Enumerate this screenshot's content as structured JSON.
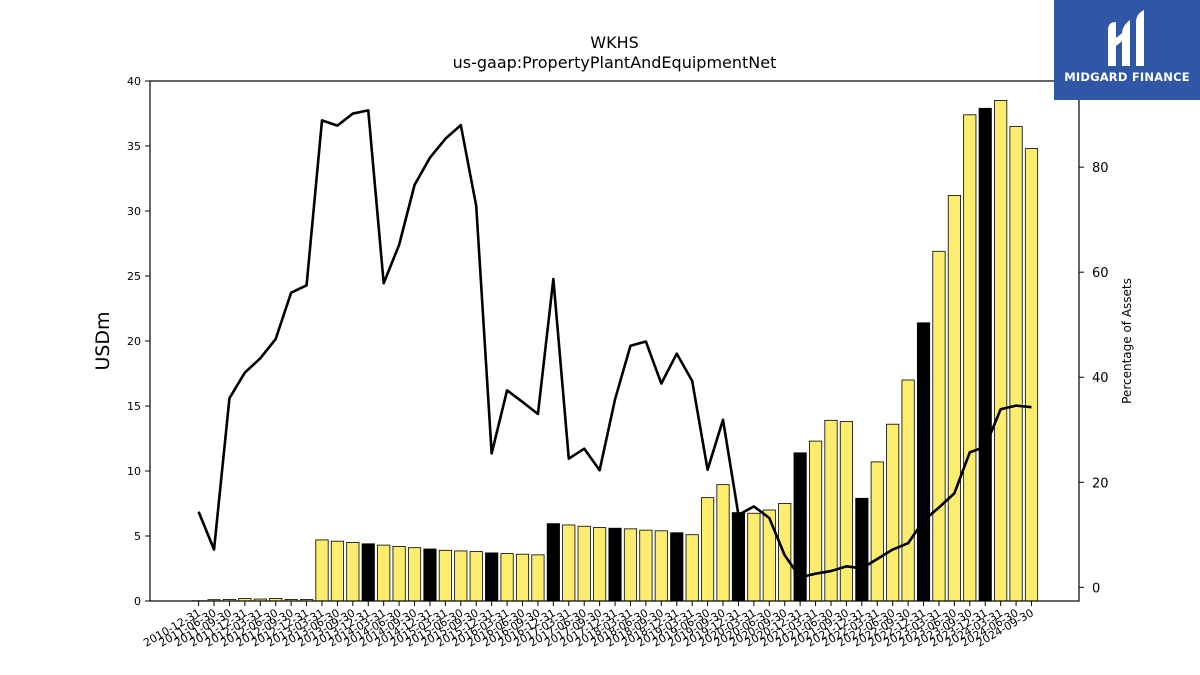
{
  "chart_data": {
    "type": "bar",
    "title": "WKHS",
    "subtitle": "us-gaap:PropertyPlantAndEquipmentNet",
    "ylabel": "USDm",
    "ylabel_right": "Percentage of Assets",
    "ylim": [
      0,
      40
    ],
    "ylim_right": [
      -2.6,
      96.4
    ],
    "yticks": [
      0,
      5,
      10,
      15,
      20,
      25,
      30,
      35,
      40
    ],
    "yticks_right": [
      0,
      20,
      40,
      60,
      80
    ],
    "grid": false,
    "colors": {
      "bar_default": "#fced6f",
      "bar_highlight": "#000000",
      "line": "#000000",
      "bar_edge": "#000000"
    },
    "categories": [
      "2010-12-31",
      "2011-06-30",
      "2011-09-30",
      "2011-12-31",
      "2012-03-31",
      "2012-06-30",
      "2012-09-30",
      "2012-12-31",
      "2013-03-31",
      "2013-06-30",
      "2013-09-30",
      "2013-12-31",
      "2014-03-31",
      "2014-06-30",
      "2014-09-30",
      "2014-12-31",
      "2015-03-31",
      "2015-06-30",
      "2015-09-30",
      "2015-12-31",
      "2016-03-31",
      "2016-06-30",
      "2016-09-30",
      "2016-12-31",
      "2017-03-31",
      "2017-06-30",
      "2017-09-30",
      "2017-12-31",
      "2018-03-31",
      "2018-06-30",
      "2018-09-30",
      "2018-12-31",
      "2019-03-31",
      "2019-06-30",
      "2019-09-30",
      "2019-12-31",
      "2020-03-31",
      "2020-06-30",
      "2020-09-30",
      "2020-12-31",
      "2021-03-31",
      "2021-06-30",
      "2021-09-30",
      "2021-12-31",
      "2022-03-31",
      "2022-06-30",
      "2022-09-30",
      "2022-12-31",
      "2023-03-31",
      "2023-06-30",
      "2023-09-30",
      "2023-12-31",
      "2024-03-31",
      "2024-06-30",
      "2024-09-30"
    ],
    "series": [
      {
        "type": "bar",
        "values": [
          0.02,
          0.1,
          0.12,
          0.2,
          0.15,
          0.2,
          0.12,
          0.12,
          4.7,
          4.6,
          4.5,
          4.4,
          4.3,
          4.2,
          4.1,
          4.0,
          3.9,
          3.85,
          3.8,
          3.7,
          3.65,
          3.6,
          3.55,
          5.95,
          5.85,
          5.75,
          5.65,
          5.6,
          5.55,
          5.45,
          5.4,
          5.25,
          5.1,
          7.95,
          8.95,
          6.8,
          6.75,
          7.0,
          7.5,
          11.4,
          12.3,
          13.9,
          13.8,
          7.9,
          10.7,
          13.6,
          17.0,
          21.4,
          26.9,
          31.2,
          37.4,
          37.9,
          38.5,
          36.5,
          34.8
        ],
        "highlight": [
          false,
          false,
          false,
          false,
          false,
          false,
          false,
          false,
          false,
          false,
          false,
          true,
          false,
          false,
          false,
          true,
          false,
          false,
          false,
          true,
          false,
          false,
          false,
          true,
          false,
          false,
          false,
          true,
          false,
          false,
          false,
          true,
          false,
          false,
          false,
          true,
          false,
          false,
          false,
          true,
          false,
          false,
          false,
          true,
          false,
          false,
          false,
          true,
          false,
          false,
          false,
          true,
          false,
          false,
          false
        ]
      },
      {
        "type": "line",
        "axis": "right",
        "values": [
          14.4,
          7.2,
          36.0,
          40.9,
          43.6,
          47.3,
          56.1,
          57.5,
          88.9,
          87.9,
          90.2,
          90.8,
          57.9,
          65.2,
          76.6,
          81.8,
          85.4,
          88.0,
          72.6,
          25.5,
          37.5,
          35.3,
          33.0,
          58.7,
          24.5,
          26.4,
          22.3,
          35.8,
          46.0,
          46.8,
          38.8,
          44.5,
          39.3,
          22.4,
          31.9,
          13.8,
          15.4,
          13.2,
          6.1,
          1.9,
          2.6,
          3.1,
          4.0,
          3.6,
          5.4,
          7.2,
          8.4,
          12.7,
          15.2,
          17.9,
          25.7,
          26.8,
          33.9,
          34.6,
          34.3
        ]
      }
    ]
  },
  "brand": {
    "name": "MIDGARD FINANCE",
    "logo_icon": "midgard-m-logo-icon",
    "bg": "#2f57a6"
  }
}
